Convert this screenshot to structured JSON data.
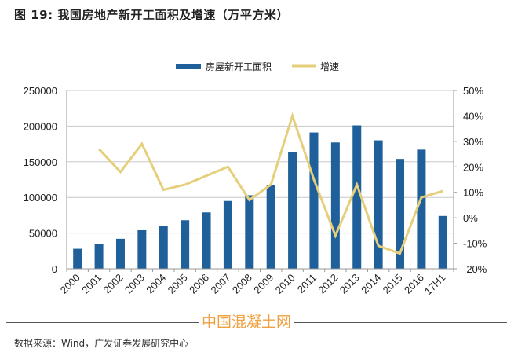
{
  "title": "图 19: 我国房地产新开工面积及增速（万平方米）",
  "source": "数据来源：Wind，广发证券发展研究中心",
  "watermark": "中国混凝土网",
  "colors": {
    "bar": "#1f5f9a",
    "line": "#e5cf7a",
    "grid": "#c8c8c8",
    "axis": "#999999"
  },
  "chart_data": {
    "type": "bar",
    "title": "我国房地产新开工面积及增速（万平方米）",
    "categories": [
      "2000",
      "2001",
      "2002",
      "2003",
      "2004",
      "2005",
      "2006",
      "2007",
      "2008",
      "2009",
      "2010",
      "2011",
      "2012",
      "2013",
      "2014",
      "2015",
      "2016",
      "17H1"
    ],
    "series": [
      {
        "name": "房屋新开工面积",
        "type": "bar",
        "axis": "left",
        "values": [
          28000,
          35000,
          42000,
          54000,
          60000,
          68000,
          79000,
          95000,
          103000,
          117000,
          164000,
          191000,
          177000,
          201000,
          180000,
          154000,
          167000,
          74000
        ]
      },
      {
        "name": "增速",
        "type": "line",
        "axis": "right",
        "values": [
          null,
          27,
          18,
          29,
          11,
          13,
          16.5,
          20,
          7,
          13,
          40,
          15,
          -7,
          13,
          -11,
          -14,
          8,
          10.5
        ]
      }
    ],
    "left_axis": {
      "min": 0,
      "max": 250000,
      "ticks": [
        "0",
        "50000",
        "100000",
        "150000",
        "200000",
        "250000"
      ]
    },
    "right_axis": {
      "min": -20,
      "max": 50,
      "ticks": [
        "-20%",
        "-10%",
        "0%",
        "10%",
        "20%",
        "30%",
        "40%",
        "50%"
      ]
    },
    "grid": true,
    "legend": {
      "placement": "top-center",
      "items": [
        "房屋新开工面积",
        "增速"
      ]
    },
    "xlabel": "",
    "ylabel": ""
  }
}
